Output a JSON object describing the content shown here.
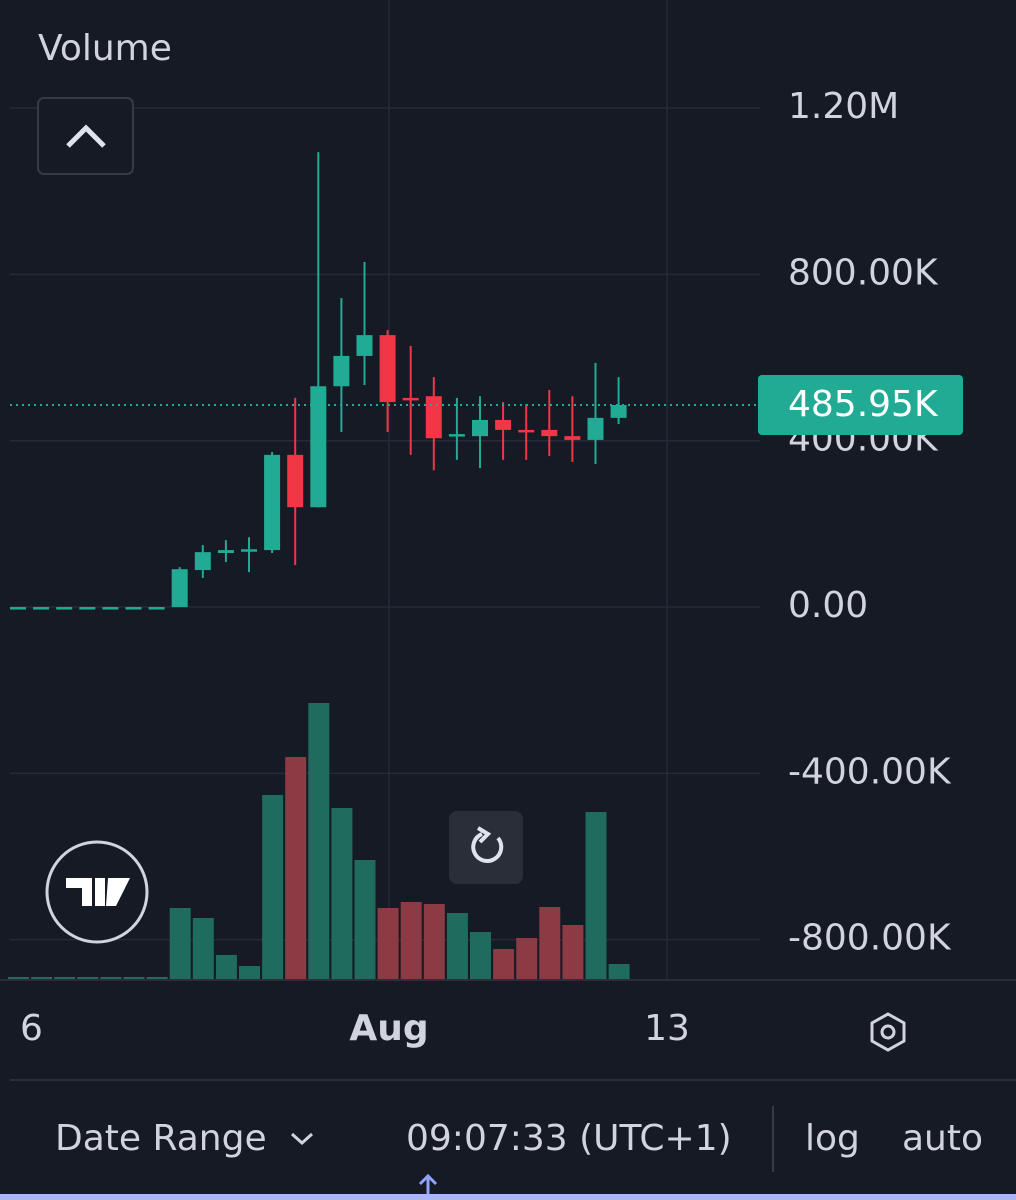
{
  "header": {
    "pane_label": "Volume"
  },
  "chart_data": {
    "type": "candlestick",
    "ylim": [
      -897000,
      1460000
    ],
    "yticks": [
      {
        "value": -800000,
        "label": "-800.00K"
      },
      {
        "value": -400000,
        "label": "-400.00K"
      },
      {
        "value": 0,
        "label": "0.00"
      },
      {
        "value": 400000,
        "label": "400.00K"
      },
      {
        "value": 800000,
        "label": "800.00K"
      },
      {
        "value": 1200000,
        "label": "1.20M"
      }
    ],
    "grid": true,
    "last_price": {
      "value": 485950,
      "label": "485.95K"
    },
    "up_color": "#22ab94",
    "down_color": "#f23645",
    "volume_up_color": "#1f6b5e",
    "volume_down_color": "#8c3a44",
    "x_labels": [
      "6",
      "Aug",
      "13"
    ],
    "open": [
      0,
      0,
      0,
      0,
      0,
      0,
      0,
      0,
      89000,
      130000,
      137000,
      137000,
      366000,
      240000,
      531000,
      604000,
      654000,
      503000,
      507000,
      411000,
      411000,
      450000,
      426000,
      426000,
      411000,
      402000,
      455000
    ],
    "high": [
      0,
      0,
      0,
      0,
      0,
      0,
      0,
      96000,
      149000,
      161000,
      168000,
      373000,
      503000,
      1094000,
      743000,
      830000,
      666000,
      628000,
      553000,
      503000,
      507000,
      493000,
      488000,
      522000,
      507000,
      587000,
      553000
    ],
    "low": [
      0,
      0,
      0,
      0,
      0,
      0,
      0,
      0,
      70000,
      108000,
      84000,
      130000,
      101000,
      240000,
      421000,
      534000,
      421000,
      366000,
      329000,
      354000,
      334000,
      354000,
      354000,
      363000,
      349000,
      344000,
      440000
    ],
    "close": [
      0,
      0,
      0,
      0,
      0,
      0,
      0,
      91000,
      132000,
      137000,
      139000,
      366000,
      240000,
      531000,
      604000,
      654000,
      493000,
      497000,
      406000,
      416000,
      450000,
      426000,
      421000,
      411000,
      402000,
      455000,
      485950
    ],
    "volume": [
      2,
      2,
      2,
      2,
      2,
      2,
      2,
      71,
      61,
      24,
      13,
      184,
      222,
      276,
      171,
      119,
      71,
      77,
      75,
      66,
      47,
      30,
      41,
      72,
      54,
      167,
      15
    ]
  },
  "footer": {
    "date_range": "Date Range",
    "time": "09:07:33 (UTC+1)",
    "log": "log",
    "auto": "auto"
  }
}
